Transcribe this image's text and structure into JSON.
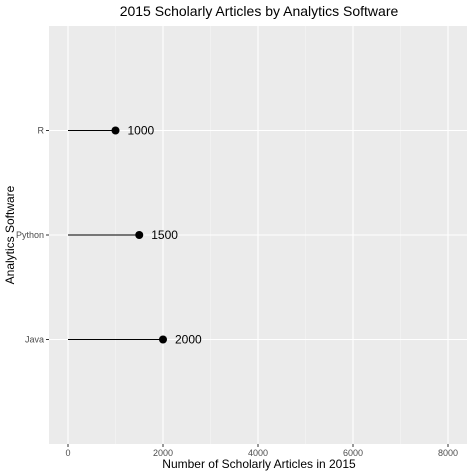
{
  "chart_data": {
    "type": "lollipop",
    "title": "2015 Scholarly Articles by Analytics Software",
    "xlabel": "Number of Scholarly Articles in 2015",
    "ylabel": "Analytics Software",
    "xlim": [
      -400,
      8400
    ],
    "xticks": [
      "0",
      "2000",
      "4000",
      "6000",
      "8000"
    ],
    "categories": [
      "R",
      "Python",
      "Java"
    ],
    "values": [
      1000,
      1500,
      2000
    ],
    "labels": [
      "1000",
      "1500",
      "2000"
    ],
    "grid": true,
    "colors": {
      "panel": "#ebebeb",
      "grid_major": "#ffffff",
      "grid_minor": "#f5f5f5",
      "mark": "#000000"
    }
  }
}
